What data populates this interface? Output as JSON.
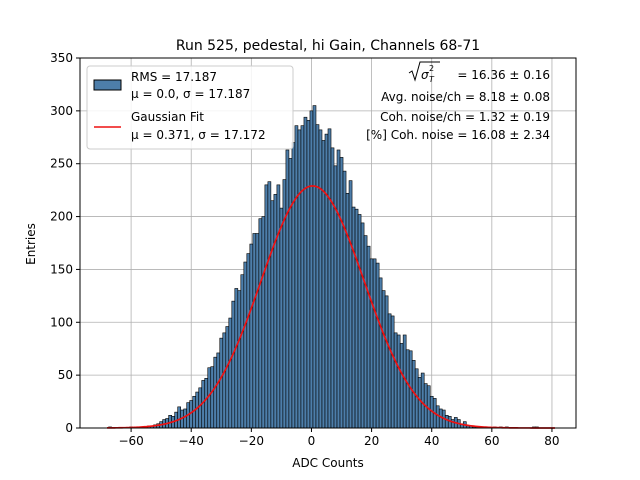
{
  "chart_data": {
    "type": "bar",
    "title": "Run 525, pedestal, hi Gain, Channels 68-71",
    "xlabel": "ADC Counts",
    "ylabel": "Entries",
    "xlim": [
      -77,
      88
    ],
    "ylim": [
      0,
      350
    ],
    "x_ticks": [
      -60,
      -40,
      -20,
      0,
      20,
      40,
      60,
      80
    ],
    "y_ticks": [
      0,
      50,
      100,
      150,
      200,
      250,
      300,
      350
    ],
    "grid": true,
    "legend_position": "top-left",
    "legend": [
      {
        "label_line1": "RMS = 17.187",
        "label_line2": "μ = 0.0, σ = 17.187",
        "kind": "patch"
      },
      {
        "label_line1": "Gaussian Fit",
        "label_line2": "μ = 0.371, σ = 17.172",
        "kind": "line"
      }
    ],
    "annotations": {
      "line1_value": " = 16.36 ± 0.16",
      "line2": "Avg. noise/ch = 8.18 ± 0.08",
      "line3": "Coh. noise/ch = 1.32 ± 0.19",
      "line4": "[%] Coh. noise = 16.08 ± 2.34"
    },
    "histogram": {
      "bin_width": 1,
      "bin_centers": [
        -67,
        -66,
        -65,
        -64,
        -63,
        -62,
        -61,
        -60,
        -59,
        -58,
        -57,
        -56,
        -55,
        -54,
        -53,
        -52,
        -51,
        -50,
        -49,
        -48,
        -47,
        -46,
        -45,
        -44,
        -43,
        -42,
        -41,
        -40,
        -39,
        -38,
        -37,
        -36,
        -35,
        -34,
        -33,
        -32,
        -31,
        -30,
        -29,
        -28,
        -27,
        -26,
        -25,
        -24,
        -23,
        -22,
        -21,
        -20,
        -19,
        -18,
        -17,
        -16,
        -15,
        -14,
        -13,
        -12,
        -11,
        -10,
        -9,
        -8,
        -7,
        -6,
        -5,
        -4,
        -3,
        -2,
        -1,
        0,
        1,
        2,
        3,
        4,
        5,
        6,
        7,
        8,
        9,
        10,
        11,
        12,
        13,
        14,
        15,
        16,
        17,
        18,
        19,
        20,
        21,
        22,
        23,
        24,
        25,
        26,
        27,
        28,
        29,
        30,
        31,
        32,
        33,
        34,
        35,
        36,
        37,
        38,
        39,
        40,
        41,
        42,
        43,
        44,
        45,
        46,
        47,
        48,
        49,
        50,
        51,
        52,
        53,
        54,
        55,
        56,
        57,
        58,
        59,
        60,
        61,
        62,
        63,
        64,
        65,
        66,
        67,
        68,
        69,
        70,
        71,
        72,
        73,
        74,
        75,
        76,
        77,
        78,
        79,
        80
      ],
      "counts": [
        1,
        0,
        0,
        0,
        0,
        0,
        0,
        1,
        0,
        1,
        1,
        1,
        1,
        2,
        2,
        3,
        4,
        6,
        8,
        9,
        12,
        11,
        15,
        20,
        17,
        18,
        24,
        26,
        30,
        34,
        38,
        45,
        47,
        57,
        58,
        67,
        71,
        85,
        90,
        96,
        104,
        120,
        132,
        130,
        145,
        157,
        165,
        174,
        184,
        184,
        198,
        200,
        230,
        233,
        215,
        221,
        230,
        208,
        235,
        263,
        255,
        270,
        286,
        282,
        286,
        294,
        291,
        300,
        305,
        287,
        282,
        272,
        278,
        283,
        265,
        248,
        263,
        256,
        243,
        222,
        234,
        209,
        207,
        202,
        194,
        182,
        172,
        160,
        160,
        156,
        142,
        130,
        125,
        108,
        106,
        90,
        88,
        80,
        88,
        74,
        73,
        64,
        56,
        48,
        52,
        42,
        40,
        30,
        28,
        21,
        18,
        17,
        12,
        11,
        8,
        10,
        8,
        4,
        6,
        2,
        2,
        1,
        1,
        1,
        1,
        1,
        1,
        0,
        1,
        0,
        1,
        0,
        1,
        0,
        0,
        0,
        0,
        0,
        0,
        0,
        0,
        1,
        1
      ]
    },
    "fit": {
      "type": "gaussian",
      "mu": 0.371,
      "sigma": 17.172,
      "amplitude": 229,
      "x_range": [
        -68,
        81
      ],
      "color": "#ee1111"
    },
    "colors": {
      "bar_fill": "#4d7eaa",
      "bar_edge": "#000000",
      "grid": "#b0b0b0"
    }
  }
}
